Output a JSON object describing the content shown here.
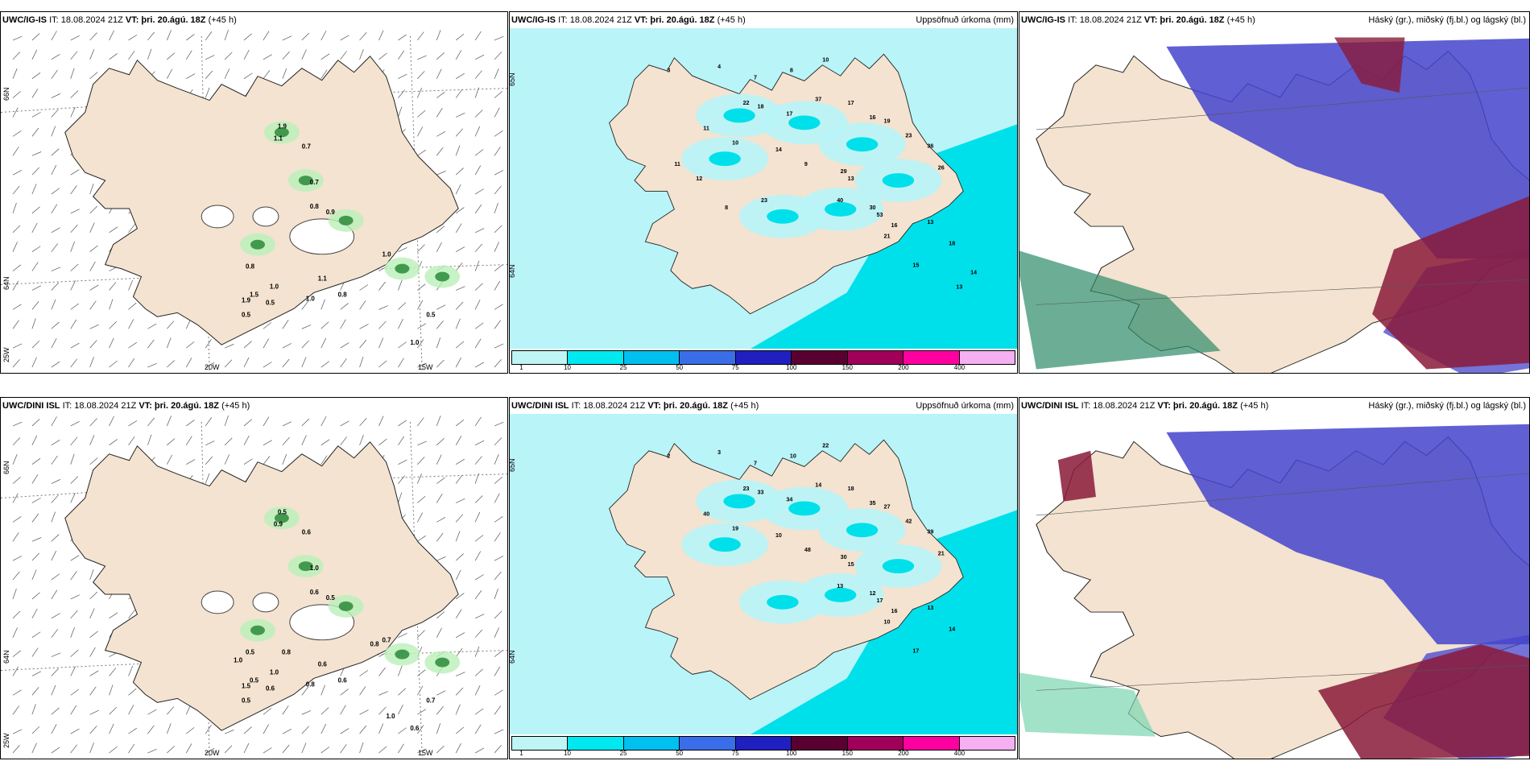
{
  "panels": {
    "top_wind": {
      "model": "UWC/IG-IS",
      "init": "IT: 18.08.2024 21Z",
      "vt_label": "VT:",
      "vt_value": "þri. 20.ágú. 18Z",
      "lead": "(+45 h)",
      "right": "",
      "lat_labels": [
        "66N",
        "64N",
        "25W"
      ],
      "lon_labels": [
        "20W",
        "15W"
      ],
      "values": [
        "1.9",
        "1.1",
        "0.7",
        "0.7",
        "0.8",
        "0.9",
        "1.0",
        "0.8",
        "1.0",
        "1.9",
        "1.5",
        "1.0",
        "0.5",
        "0.5",
        "1.1",
        "0.8",
        "0.5",
        "1.0"
      ]
    },
    "top_precip": {
      "model": "UWC/IG-IS",
      "init": "IT: 18.08.2024 21Z",
      "vt_label": "VT:",
      "vt_value": "þri. 20.ágú. 18Z",
      "lead": "(+45 h)",
      "right": "Uppsöfnuð úrkoma (mm)",
      "lat_labels": [
        "65N",
        "64N"
      ],
      "values": [
        "3",
        "4",
        "7",
        "8",
        "10",
        "22",
        "18",
        "17",
        "37",
        "17",
        "16",
        "19",
        "23",
        "36",
        "26",
        "11",
        "10",
        "14",
        "9",
        "29",
        "13",
        "40",
        "53",
        "30",
        "16",
        "21",
        "13",
        "18",
        "15",
        "14",
        "13",
        "11",
        "12",
        "23",
        "8"
      ]
    },
    "top_cloud": {
      "model": "UWC/IG-IS",
      "init": "IT: 18.08.2024 21Z",
      "vt_label": "VT:",
      "vt_value": "þri. 20.ágú. 18Z",
      "lead": "(+45 h)",
      "right": "Háský (gr.), miðský (fj.bl.) og lágský (bl.)"
    },
    "bot_wind": {
      "model": "UWC/DINI ISL",
      "init": "IT: 18.08.2024 21Z",
      "vt_label": "VT:",
      "vt_value": "þri. 20.ágú. 18Z",
      "lead": "(+45 h)",
      "right": "",
      "lat_labels": [
        "66N",
        "64N",
        "25W"
      ],
      "lon_labels": [
        "20W",
        "15W"
      ],
      "values": [
        "0.5",
        "0.9",
        "0.6",
        "1.0",
        "0.6",
        "0.5",
        "0.7",
        "0.5",
        "1.0",
        "1.5",
        "0.5",
        "0.8",
        "0.6",
        "0.5",
        "0.6",
        "0.6",
        "0.7",
        "0.6",
        "1.0",
        "0.8",
        "0.8",
        "1.0"
      ]
    },
    "bot_precip": {
      "model": "UWC/DINI ISL",
      "init": "IT: 18.08.2024 21Z",
      "vt_label": "VT:",
      "vt_value": "þri. 20.ágú. 18Z",
      "lead": "(+45 h)",
      "right": "Uppsöfnuð úrkoma (mm)",
      "lat_labels": [
        "65N",
        "64N"
      ],
      "values": [
        "2",
        "3",
        "7",
        "10",
        "22",
        "23",
        "33",
        "34",
        "14",
        "18",
        "35",
        "27",
        "42",
        "39",
        "21",
        "40",
        "19",
        "10",
        "48",
        "30",
        "15",
        "13",
        "17",
        "12",
        "16",
        "10",
        "13",
        "14",
        "17"
      ]
    },
    "bot_cloud": {
      "model": "UWC/DINI ISL",
      "init": "IT: 18.08.2024 21Z",
      "vt_label": "VT:",
      "vt_value": "þri. 20.ágú. 18Z",
      "lead": "(+45 h)",
      "right": "Háský (gr.), miðský (fj.bl.) og lágský (bl.)"
    }
  },
  "legend": {
    "ticks": [
      "1",
      "10",
      "25",
      "50",
      "75",
      "100",
      "150",
      "200",
      "400"
    ],
    "colors": [
      "#bff5f5",
      "#00e8f0",
      "#00c0f0",
      "#3a6ee8",
      "#2020c0",
      "#5a0030",
      "#a0005a",
      "#ff00a0",
      "#f4b0f0"
    ]
  },
  "colors": {
    "land": "#f3e3d0",
    "precip_light": "#b8f4f8",
    "precip_mid": "#00e0ea",
    "cloud_high": "#2e8a6a",
    "cloud_mid": "#4444cc",
    "cloud_low": "#8a1a3a",
    "wind_green": "#2a8a3a"
  }
}
